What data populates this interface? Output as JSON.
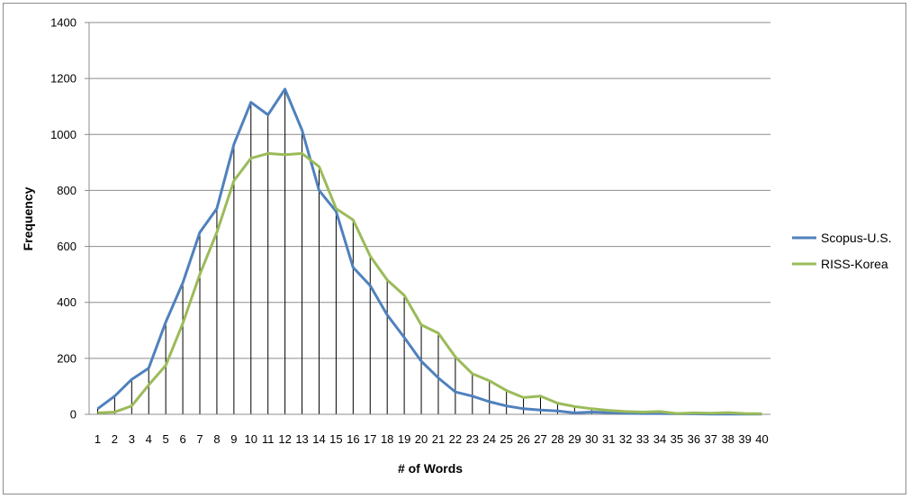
{
  "chart_data": {
    "type": "line",
    "title": "",
    "xlabel": "# of Words",
    "ylabel": "Frequency",
    "ylim": [
      0,
      1400
    ],
    "yticks": [
      0,
      200,
      400,
      600,
      800,
      1000,
      1200,
      1400
    ],
    "grid": "horizontal",
    "drop_lines": true,
    "legend_position": "right",
    "x": [
      1,
      2,
      3,
      4,
      5,
      6,
      7,
      8,
      9,
      10,
      11,
      12,
      13,
      14,
      15,
      16,
      17,
      18,
      19,
      20,
      21,
      22,
      23,
      24,
      25,
      26,
      27,
      28,
      29,
      30,
      31,
      32,
      33,
      34,
      35,
      36,
      37,
      38,
      39,
      40
    ],
    "series": [
      {
        "name": "Scopus-U.S.",
        "color": "#4f81bd",
        "values": [
          20,
          65,
          125,
          165,
          330,
          470,
          650,
          735,
          965,
          1115,
          1070,
          1162,
          1015,
          800,
          725,
          525,
          460,
          355,
          275,
          190,
          130,
          80,
          65,
          45,
          30,
          20,
          15,
          12,
          5,
          8,
          6,
          4,
          3,
          3,
          2,
          2,
          1,
          1,
          1,
          1
        ]
      },
      {
        "name": "RISS-Korea",
        "color": "#9bbb59",
        "values": [
          5,
          8,
          30,
          105,
          175,
          325,
          500,
          650,
          835,
          915,
          932,
          928,
          932,
          885,
          735,
          695,
          565,
          480,
          425,
          320,
          290,
          205,
          145,
          120,
          85,
          60,
          65,
          40,
          28,
          20,
          14,
          10,
          8,
          10,
          3,
          5,
          4,
          6,
          3,
          2
        ]
      }
    ]
  }
}
